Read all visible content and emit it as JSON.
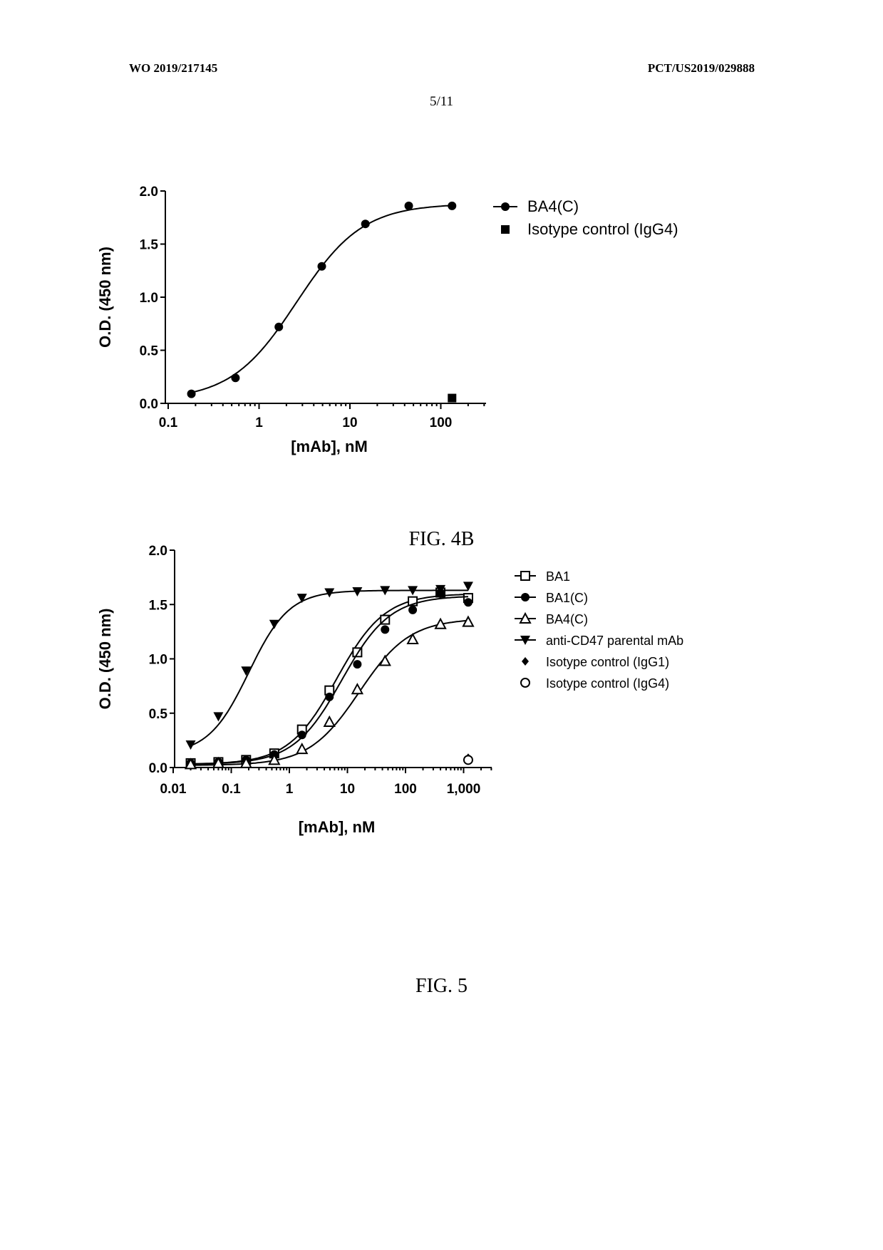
{
  "header": {
    "left": "WO 2019/217145",
    "right": "PCT/US2019/029888",
    "sheet": "5/11"
  },
  "chart_data": [
    {
      "type": "scatter",
      "caption": "FIG. 4B",
      "xlabel": "[mAb], nM",
      "ylabel": "O.D. (450 nm)",
      "x_scale": "log",
      "xlim": [
        0.1,
        350
      ],
      "ylim": [
        0,
        2.0
      ],
      "x_ticks": [
        0.1,
        1,
        10,
        100
      ],
      "x_tick_labels": [
        "0.1",
        "1",
        "10",
        "100"
      ],
      "y_ticks": [
        0,
        0.5,
        1.0,
        1.5,
        2.0
      ],
      "y_tick_labels": [
        "0.0",
        "0.5",
        "1.0",
        "1.5",
        "2.0"
      ],
      "legend_position": "top-right outside",
      "series": [
        {
          "name": "BA4(C)",
          "marker": "filled-circle",
          "x": [
            0.18,
            0.55,
            1.65,
            4.9,
            14.8,
            44.4,
            133
          ],
          "y": [
            0.09,
            0.24,
            0.72,
            1.29,
            1.69,
            1.86,
            1.86
          ],
          "fit": {
            "bottom": 0.03,
            "top": 1.88,
            "ec50": 2.6,
            "hill": 1.2
          }
        },
        {
          "name": "Isotype control (IgG4)",
          "marker": "filled-square",
          "x": [
            133
          ],
          "y": [
            0.05
          ]
        }
      ]
    },
    {
      "type": "scatter",
      "caption": "FIG. 5",
      "xlabel": "[mAb], nM",
      "ylabel": "O.D. (450 nm)",
      "x_scale": "log",
      "xlim": [
        0.01,
        3000
      ],
      "ylim": [
        0,
        2.0
      ],
      "x_ticks": [
        0.01,
        0.1,
        1,
        10,
        100,
        1000
      ],
      "x_tick_labels": [
        "0.01",
        "0.1",
        "1",
        "10",
        "100",
        "1,000"
      ],
      "y_ticks": [
        0,
        0.5,
        1.0,
        1.5,
        2.0
      ],
      "y_tick_labels": [
        "0.0",
        "0.5",
        "1.0",
        "1.5",
        "2.0"
      ],
      "legend_position": "right outside",
      "series": [
        {
          "name": "BA1",
          "marker": "open-square",
          "x": [
            0.02,
            0.06,
            0.18,
            0.55,
            1.65,
            4.9,
            14.8,
            44.4,
            133,
            400,
            1200
          ],
          "y": [
            0.04,
            0.05,
            0.07,
            0.13,
            0.35,
            0.71,
            1.06,
            1.36,
            1.53,
            1.61,
            1.56
          ],
          "fit": {
            "bottom": 0.03,
            "top": 1.6,
            "ec50": 6.5,
            "hill": 1.05
          }
        },
        {
          "name": "BA1(C)",
          "marker": "filled-circle",
          "x": [
            0.02,
            0.06,
            0.18,
            0.55,
            1.65,
            4.9,
            14.8,
            44.4,
            133,
            400,
            1200
          ],
          "y": [
            0.04,
            0.05,
            0.07,
            0.12,
            0.3,
            0.65,
            0.95,
            1.27,
            1.45,
            1.6,
            1.52
          ],
          "fit": {
            "bottom": 0.03,
            "top": 1.58,
            "ec50": 8.0,
            "hill": 1.05
          }
        },
        {
          "name": "BA4(C)",
          "marker": "open-triangle",
          "x": [
            0.02,
            0.06,
            0.18,
            0.55,
            1.65,
            4.9,
            14.8,
            44.4,
            133,
            400,
            1200
          ],
          "y": [
            0.03,
            0.04,
            0.04,
            0.07,
            0.17,
            0.42,
            0.72,
            0.98,
            1.18,
            1.32,
            1.34
          ],
          "fit": {
            "bottom": 0.02,
            "top": 1.37,
            "ec50": 16.0,
            "hill": 1.0
          }
        },
        {
          "name": "anti-CD47 parental mAb",
          "marker": "filled-triangle-down",
          "x": [
            0.02,
            0.06,
            0.18,
            0.55,
            1.65,
            4.9,
            14.8,
            44.4,
            133,
            400,
            1200
          ],
          "y": [
            0.21,
            0.47,
            0.89,
            1.32,
            1.56,
            1.61,
            1.62,
            1.63,
            1.63,
            1.64,
            1.67
          ],
          "fit": {
            "bottom": 0.12,
            "top": 1.63,
            "ec50": 0.2,
            "hill": 1.25
          }
        },
        {
          "name": "Isotype control (IgG1)",
          "marker": "filled-diamond",
          "x": [
            1200
          ],
          "y": [
            0.09
          ]
        },
        {
          "name": "Isotype control (IgG4)",
          "marker": "open-circle",
          "x": [
            1200
          ],
          "y": [
            0.07
          ]
        }
      ]
    }
  ]
}
